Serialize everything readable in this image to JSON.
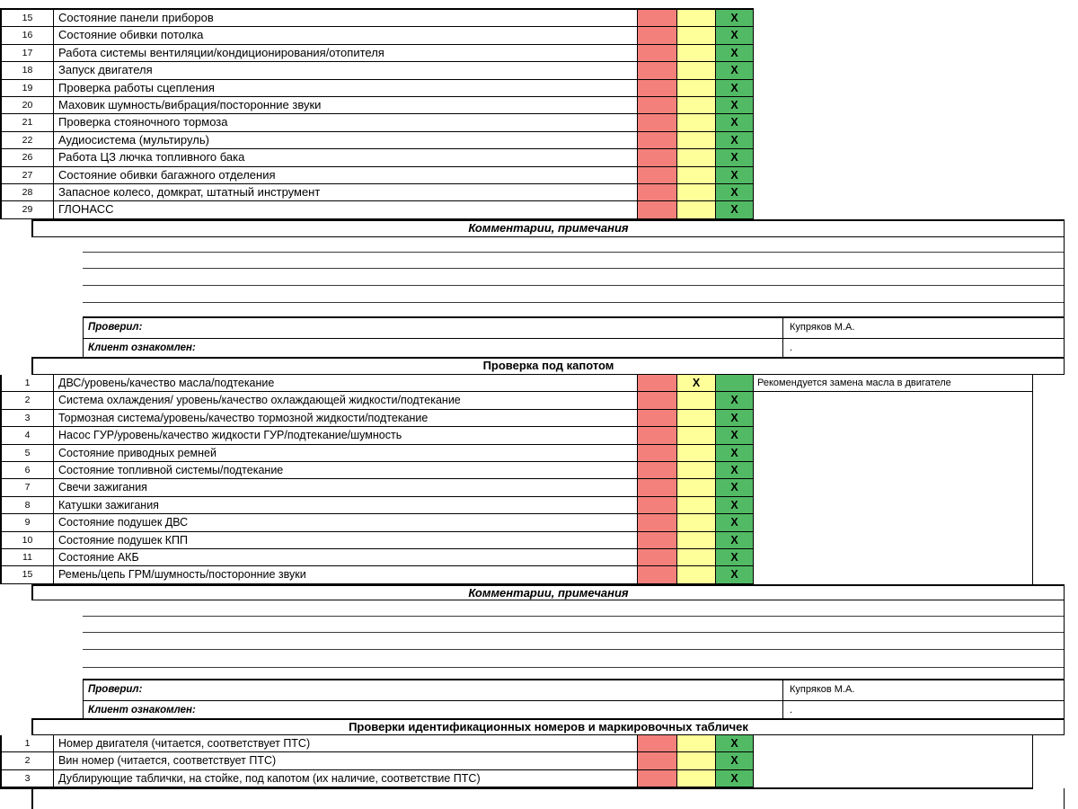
{
  "colors": {
    "red": "#F4807B",
    "yellow": "#FFFF99",
    "green": "#52BA64"
  },
  "labels": {
    "comments_header": "Комментарии, примечания",
    "checked_by": "Проверил:",
    "client_ack": "Клиент ознакомлен:",
    "inspector_name": "Купряков М.А.",
    "client_ack_value": ".",
    "x_mark": "X"
  },
  "sections": [
    {
      "id": "interior",
      "header": "",
      "rows": [
        {
          "n": "15",
          "text": "Состояние панели приборов",
          "status": "green",
          "comment": ""
        },
        {
          "n": "16",
          "text": "Состояние обивки потолка",
          "status": "green",
          "comment": ""
        },
        {
          "n": "17",
          "text": "Работа системы вентиляции/кондиционирования/отопителя",
          "status": "green",
          "comment": ""
        },
        {
          "n": "18",
          "text": "Запуск двигателя",
          "status": "green",
          "comment": ""
        },
        {
          "n": "19",
          "text": "Проверка работы сцепления",
          "status": "green",
          "comment": ""
        },
        {
          "n": "20",
          "text": "Маховик шумность/вибрация/посторонние звуки",
          "status": "green",
          "comment": ""
        },
        {
          "n": "21",
          "text": "Проверка стояночного тормоза",
          "status": "green",
          "comment": ""
        },
        {
          "n": "22",
          "text": "Аудиосистема (мультируль)",
          "status": "green",
          "comment": ""
        },
        {
          "n": "26",
          "text": "Работа ЦЗ лючка топливного бака",
          "status": "green",
          "comment": ""
        },
        {
          "n": "27",
          "text": "Состояние обивки багажного отделения",
          "status": "green",
          "comment": ""
        },
        {
          "n": "28",
          "text": "Запасное колесо, домкрат, штатный инструмент",
          "status": "green",
          "comment": ""
        },
        {
          "n": "29",
          "text": "ГЛОНАСС",
          "status": "green",
          "comment": ""
        }
      ]
    },
    {
      "id": "under-hood",
      "header": "Проверка под капотом",
      "rows": [
        {
          "n": "1",
          "text": "ДВС/уровень/качество масла/подтекание",
          "status": "yellow",
          "comment": "Рекомендуется замена масла в двигателе"
        },
        {
          "n": "2",
          "text": "Система охлаждения/ уровень/качество охлаждающей жидкости/подтекание",
          "status": "green",
          "comment": ""
        },
        {
          "n": "3",
          "text": "Тормозная система/уровень/качество тормозной жидкости/подтекание",
          "status": "green",
          "comment": ""
        },
        {
          "n": "4",
          "text": "Насос ГУР/уровень/качество жидкости ГУР/подтекание/шумность",
          "status": "green",
          "comment": ""
        },
        {
          "n": "5",
          "text": "Состояние приводных ремней",
          "status": "green",
          "comment": ""
        },
        {
          "n": "6",
          "text": "Состояние топливной системы/подтекание",
          "status": "green",
          "comment": ""
        },
        {
          "n": "7",
          "text": "Свечи зажигания",
          "status": "green",
          "comment": ""
        },
        {
          "n": "8",
          "text": "Катушки зажигания",
          "status": "green",
          "comment": ""
        },
        {
          "n": "9",
          "text": "Состояние подушек ДВС",
          "status": "green",
          "comment": ""
        },
        {
          "n": "10",
          "text": "Состояние подушек КПП",
          "status": "green",
          "comment": ""
        },
        {
          "n": "11",
          "text": "Состояние АКБ",
          "status": "green",
          "comment": ""
        },
        {
          "n": "15",
          "text": "Ремень/цепь ГРМ/шумность/посторонние звуки",
          "status": "green",
          "comment": ""
        }
      ]
    },
    {
      "id": "id-plates",
      "header": "Проверки идентификационных номеров и маркировочных табличек",
      "rows": [
        {
          "n": "1",
          "text": "Номер двигателя (читается, соответствует ПТС)",
          "status": "green",
          "comment": ""
        },
        {
          "n": "2",
          "text": "Вин номер (читается, соответствует ПТС)",
          "status": "green",
          "comment": ""
        },
        {
          "n": "3",
          "text": "Дублирующие таблички, на стойке, под капотом (их наличие, соответствие ПТС)",
          "status": "green",
          "comment": ""
        }
      ]
    }
  ]
}
